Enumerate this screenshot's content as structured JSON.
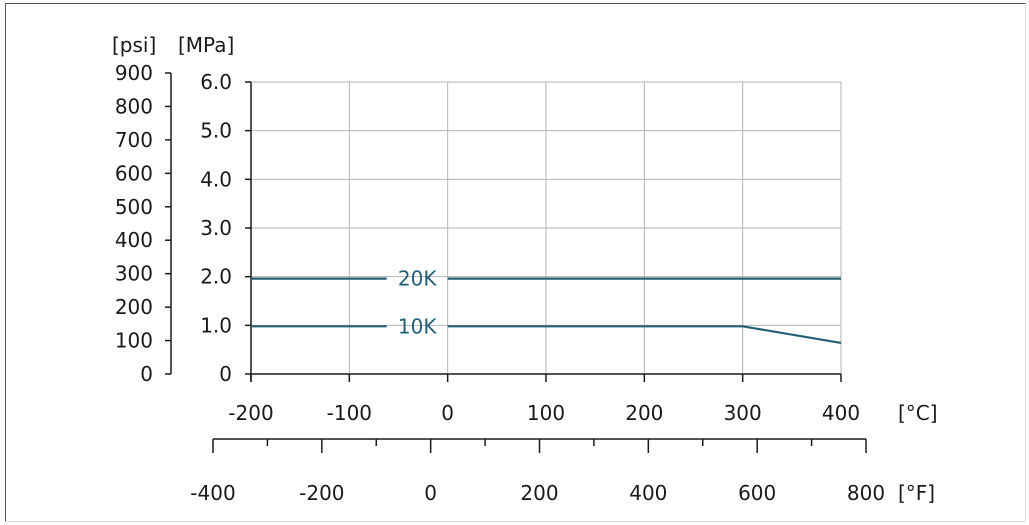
{
  "chart_data": {
    "type": "line",
    "ylabel_psi": "[psi]",
    "ylabel_mpa": "[MPa]",
    "xunit_c": "[°C]",
    "xunit_f": "[°F]",
    "x": [
      -200,
      300,
      400
    ],
    "xlim": [
      -200,
      400
    ],
    "ylim": [
      0,
      6
    ],
    "x_ticks": [
      "-200",
      "-100",
      "0",
      "100",
      "200",
      "300",
      "400"
    ],
    "x_tick_values": [
      -200,
      -100,
      0,
      100,
      200,
      300,
      400
    ],
    "mpa_ticks": [
      "0",
      "1.0",
      "2.0",
      "3.0",
      "4.0",
      "5.0",
      "6.0"
    ],
    "mpa_tick_values": [
      0,
      1,
      2,
      3,
      4,
      5,
      6
    ],
    "psi_ticks": [
      "0",
      "100",
      "200",
      "300",
      "400",
      "500",
      "600",
      "700",
      "800",
      "900"
    ],
    "psi_tick_values": [
      0,
      100,
      200,
      300,
      400,
      500,
      600,
      700,
      800,
      900
    ],
    "f_ticks": [
      "-400",
      "-200",
      "0",
      "200",
      "400",
      "600",
      "800"
    ],
    "f_tick_values": [
      -400,
      -200,
      0,
      200,
      400,
      600,
      800
    ],
    "f_minor_values": [
      -300,
      -100,
      100,
      300,
      500,
      700
    ],
    "grid": true,
    "series": [
      {
        "name": "20K",
        "x": [
          -200,
          400
        ],
        "values": [
          1.96,
          1.96
        ]
      },
      {
        "name": "10K",
        "x": [
          -200,
          300,
          400
        ],
        "values": [
          0.98,
          0.98,
          0.64
        ]
      }
    ],
    "colors": {
      "series": "#245f77",
      "grid": "#b3b3b3",
      "axis": "#1a1a1a"
    }
  }
}
